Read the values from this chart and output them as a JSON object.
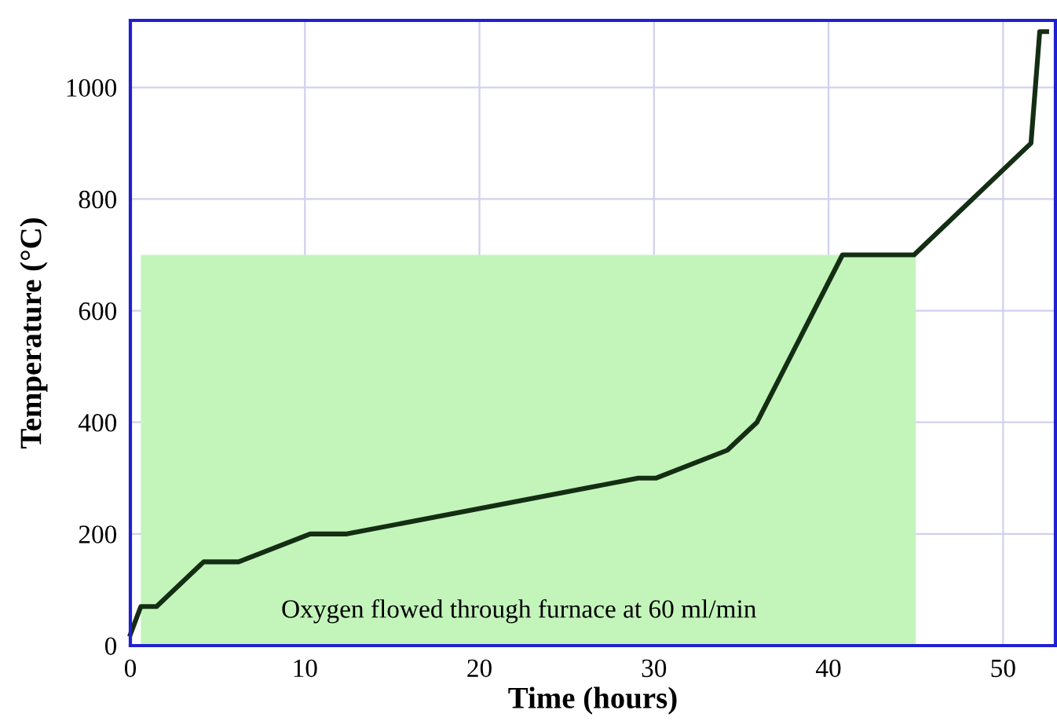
{
  "chart_data": {
    "type": "line",
    "xlabel": "Time (hours)",
    "ylabel": "Temperature (°C)",
    "x": [
      0,
      0.6,
      1.5,
      4.2,
      6.2,
      10.3,
      12.4,
      29.1,
      30.1,
      34.2,
      35.9,
      40.8,
      44.9,
      51.6,
      52.1,
      52.5
    ],
    "series": [
      {
        "type": "area",
        "color": "#c3f5bb",
        "x": [
          0.6,
          45
        ],
        "values": [
          700,
          700
        ]
      },
      {
        "color": "#142e14",
        "values": [
          20,
          70,
          70,
          150,
          150,
          200,
          200,
          300,
          300,
          350,
          400,
          700,
          700,
          900,
          1100,
          1100
        ]
      }
    ],
    "xlim": [
      0,
      53
    ],
    "ylim": [
      0,
      1120
    ],
    "xticks": [
      0,
      10,
      20,
      30,
      40,
      50
    ],
    "yticks": [
      0,
      200,
      400,
      600,
      800,
      1000
    ],
    "grid": true,
    "marker": "none",
    "line_style": "solid",
    "annotations": [
      "Oxygen flowed through furnace at 60 ml/min"
    ]
  }
}
